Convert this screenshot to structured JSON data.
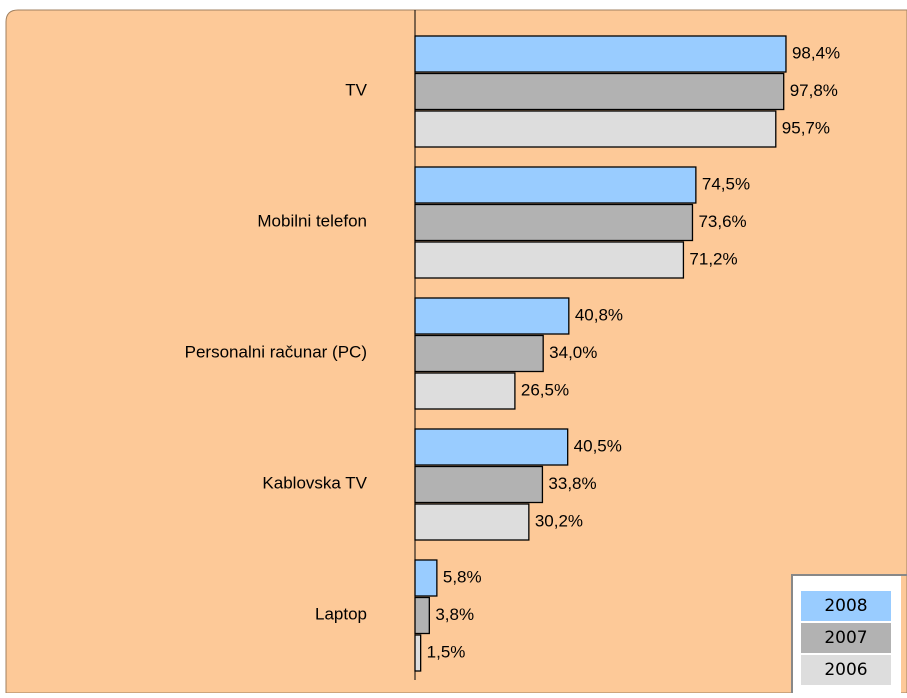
{
  "chart_data": {
    "type": "barh",
    "categories": [
      "TV",
      "Mobilni telefon",
      "Personalni računar (PC)",
      "Kablovska TV",
      "Laptop"
    ],
    "series": [
      {
        "name": "2008",
        "color": "#99ccff",
        "values": [
          98.4,
          74.5,
          40.8,
          40.5,
          5.8
        ],
        "value_labels": [
          "98,4%",
          "74,5%",
          "40,8%",
          "40,5%",
          "5,8%"
        ]
      },
      {
        "name": "2007",
        "color": "#b2b2b2",
        "values": [
          97.8,
          73.6,
          34.0,
          33.8,
          3.8
        ],
        "value_labels": [
          "97,8%",
          "73,6%",
          "34,0%",
          "33,8%",
          "3,8%"
        ]
      },
      {
        "name": "2006",
        "color": "#dddddd",
        "values": [
          95.7,
          71.2,
          26.5,
          30.2,
          1.5
        ],
        "value_labels": [
          "95,7%",
          "71,2%",
          "26,5%",
          "30,2%",
          "1,5%"
        ]
      }
    ],
    "xlim": [
      0,
      100
    ],
    "legend": "lower right"
  }
}
